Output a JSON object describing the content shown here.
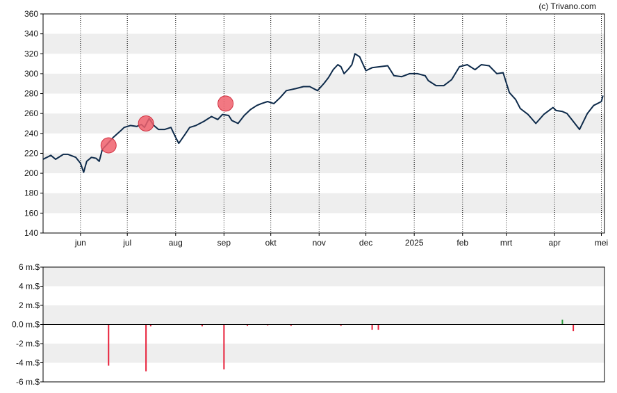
{
  "credit": "(c) Trivano.com",
  "colors": {
    "line": "#0d2a4a",
    "marker": "#f0606c",
    "band": "#eeeeee",
    "negative_bar": "#e8203a",
    "positive_bar": "#2a9a3a"
  },
  "chart_data": [
    {
      "type": "line",
      "x_tick_labels": [
        "jun",
        "jul",
        "aug",
        "sep",
        "okt",
        "nov",
        "dec",
        "2025",
        "feb",
        "mrt",
        "apr",
        "mei"
      ],
      "ylim": [
        140,
        360
      ],
      "y_ticks": [
        140,
        160,
        180,
        200,
        220,
        240,
        260,
        280,
        300,
        320,
        340,
        360
      ],
      "grid": "vertical dotted lines at month starts, alternating horizontal bands",
      "x": [
        "2024-05-08",
        "2024-05-13",
        "2024-05-16",
        "2024-05-21",
        "2024-05-24",
        "2024-05-29",
        "2024-06-01",
        "2024-06-03",
        "2024-06-05",
        "2024-06-08",
        "2024-06-11",
        "2024-06-13",
        "2024-06-15",
        "2024-06-18",
        "2024-06-22",
        "2024-06-27",
        "2024-06-29",
        "2024-07-03",
        "2024-07-07",
        "2024-07-10",
        "2024-07-12",
        "2024-07-15",
        "2024-07-18",
        "2024-07-21",
        "2024-07-25",
        "2024-07-29",
        "2024-08-01",
        "2024-08-03",
        "2024-08-07",
        "2024-08-10",
        "2024-08-14",
        "2024-08-19",
        "2024-08-24",
        "2024-08-28",
        "2024-08-31",
        "2024-09-04",
        "2024-09-06",
        "2024-09-10",
        "2024-09-14",
        "2024-09-18",
        "2024-09-22",
        "2024-09-25",
        "2024-09-29",
        "2024-10-03",
        "2024-10-07",
        "2024-10-11",
        "2024-10-17",
        "2024-10-22",
        "2024-10-26",
        "2024-10-31",
        "2024-11-04",
        "2024-11-07",
        "2024-11-10",
        "2024-11-13",
        "2024-11-15",
        "2024-11-17",
        "2024-11-20",
        "2024-11-22",
        "2024-11-24",
        "2024-11-27",
        "2024-12-01",
        "2024-12-05",
        "2024-12-10",
        "2024-12-15",
        "2024-12-19",
        "2024-12-24",
        "2024-12-29",
        "2025-01-03",
        "2025-01-08",
        "2025-01-10",
        "2025-01-15",
        "2025-01-20",
        "2025-01-25",
        "2025-01-30",
        "2025-02-04",
        "2025-02-09",
        "2025-02-13",
        "2025-02-18",
        "2025-02-23",
        "2025-02-27",
        "2025-03-03",
        "2025-03-07",
        "2025-03-10",
        "2025-03-15",
        "2025-03-20",
        "2025-03-25",
        "2025-03-31",
        "2025-04-02",
        "2025-04-06",
        "2025-04-09",
        "2025-04-13",
        "2025-04-17",
        "2025-04-22",
        "2025-04-26",
        "2025-05-01",
        "2025-05-02"
      ],
      "series": [
        {
          "values": [
            214,
            218,
            214,
            219,
            219,
            216,
            210,
            201,
            212,
            216,
            215,
            212,
            224,
            229,
            236,
            243,
            246,
            248,
            247,
            249,
            246,
            255,
            248,
            244,
            244,
            246,
            236,
            230,
            239,
            246,
            248,
            252,
            257,
            254,
            259,
            258,
            253,
            250,
            258,
            264,
            268,
            270,
            272,
            270,
            276,
            283,
            285,
            287,
            287,
            283,
            290,
            296,
            304,
            309,
            307,
            300,
            305,
            309,
            320,
            317,
            303,
            306,
            307,
            308,
            298,
            297,
            300,
            300,
            298,
            293,
            288,
            288,
            294,
            307,
            309,
            304,
            309,
            308,
            300,
            301,
            281,
            274,
            265,
            259,
            250,
            259,
            266,
            263,
            262,
            260,
            252,
            244,
            260,
            268,
            272,
            278
          ]
        }
      ],
      "markers": [
        {
          "x": "2024-06-19",
          "y": 228
        },
        {
          "x": "2024-07-13",
          "y": 250
        },
        {
          "x": "2024-09-02",
          "y": 270
        }
      ]
    },
    {
      "type": "bar",
      "y_tick_labels": [
        "6 m.$",
        "4 m.$",
        "2 m.$",
        "0.0 m.$",
        "-2 m.$",
        "-4 m.$",
        "-6 m.$"
      ],
      "ylim": [
        -6,
        6
      ],
      "y_ticks": [
        6,
        4,
        2,
        0,
        -2,
        -4,
        -6
      ],
      "bars": [
        {
          "x": "2024-06-19",
          "value": -4.3
        },
        {
          "x": "2024-07-13",
          "value": -4.9
        },
        {
          "x": "2024-07-16",
          "value": -0.2
        },
        {
          "x": "2024-08-18",
          "value": -0.2
        },
        {
          "x": "2024-09-01",
          "value": -4.7
        },
        {
          "x": "2024-09-16",
          "value": -0.15
        },
        {
          "x": "2024-09-29",
          "value": -0.1
        },
        {
          "x": "2024-10-14",
          "value": -0.15
        },
        {
          "x": "2024-11-15",
          "value": -0.15
        },
        {
          "x": "2024-12-05",
          "value": -0.55
        },
        {
          "x": "2024-12-09",
          "value": -0.55
        },
        {
          "x": "2025-04-06",
          "value": 0.5
        },
        {
          "x": "2025-04-13",
          "value": -0.7
        }
      ]
    }
  ]
}
